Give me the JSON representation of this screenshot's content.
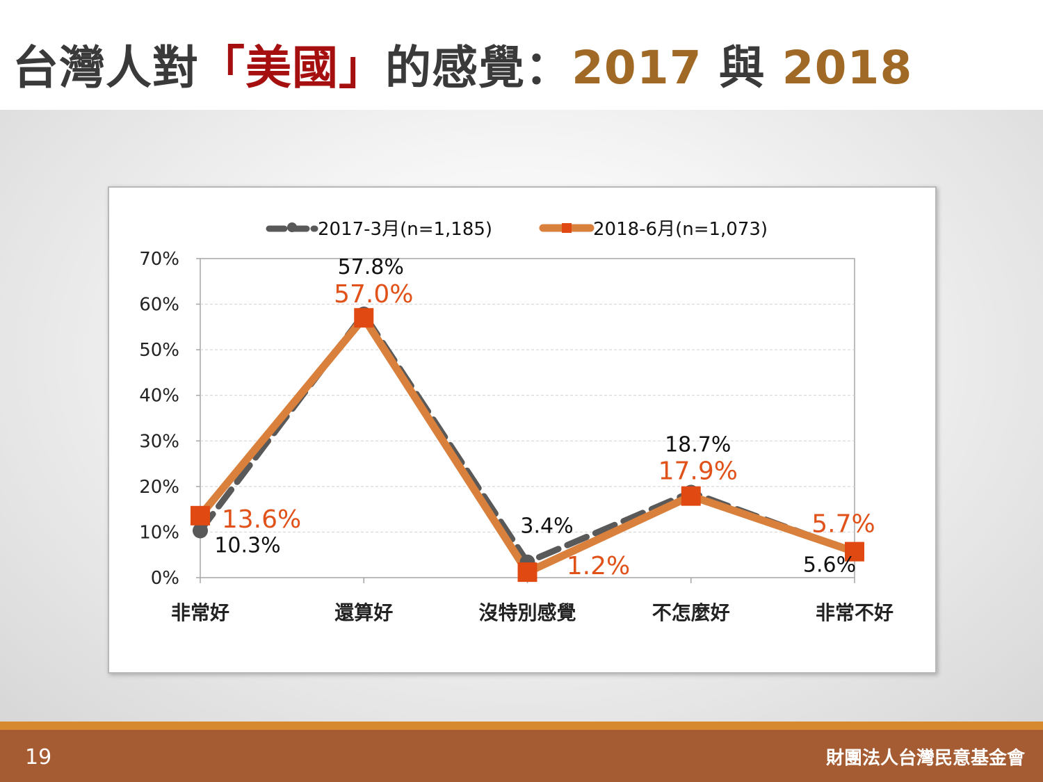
{
  "header": {
    "title_prefix": "台灣人對",
    "title_highlight": "「美國」",
    "title_middle": "的感覺：",
    "title_year1": "2017",
    "title_connector": " 與 ",
    "title_year2": "2018"
  },
  "footer": {
    "page_number": "19",
    "organization": "財團法人台灣民意基金會"
  },
  "colors": {
    "title_text": "#3a3a3a",
    "title_highlight": "#a50f0f",
    "title_years": "#a06a26",
    "series_2017": "#595959",
    "series_2018_line": "#d9803c",
    "series_2018_marker": "#e04a12",
    "label_2018": "#e0521a",
    "footer_bar": "#a65c33",
    "footer_accent": "#d7892f"
  },
  "chart_data": {
    "type": "line",
    "categories": [
      "非常好",
      "還算好",
      "沒特別感覺",
      "不怎麼好",
      "非常不好"
    ],
    "series": [
      {
        "name": "2017-3月(n=1,185)",
        "values": [
          10.3,
          57.8,
          3.4,
          18.7,
          5.6
        ],
        "labels": [
          "10.3%",
          "57.8%",
          "3.4%",
          "18.7%",
          "5.6%"
        ],
        "style": "dashed",
        "marker": "circle"
      },
      {
        "name": "2018-6月(n=1,073)",
        "values": [
          13.6,
          57.0,
          1.2,
          17.9,
          5.7
        ],
        "labels": [
          "13.6%",
          "57.0%",
          "1.2%",
          "17.9%",
          "5.7%"
        ],
        "style": "solid",
        "marker": "square"
      }
    ],
    "y_ticks": [
      "0%",
      "10%",
      "20%",
      "30%",
      "40%",
      "50%",
      "60%",
      "70%"
    ],
    "ylim": [
      0,
      70
    ],
    "grid": true,
    "legend_position": "top"
  }
}
